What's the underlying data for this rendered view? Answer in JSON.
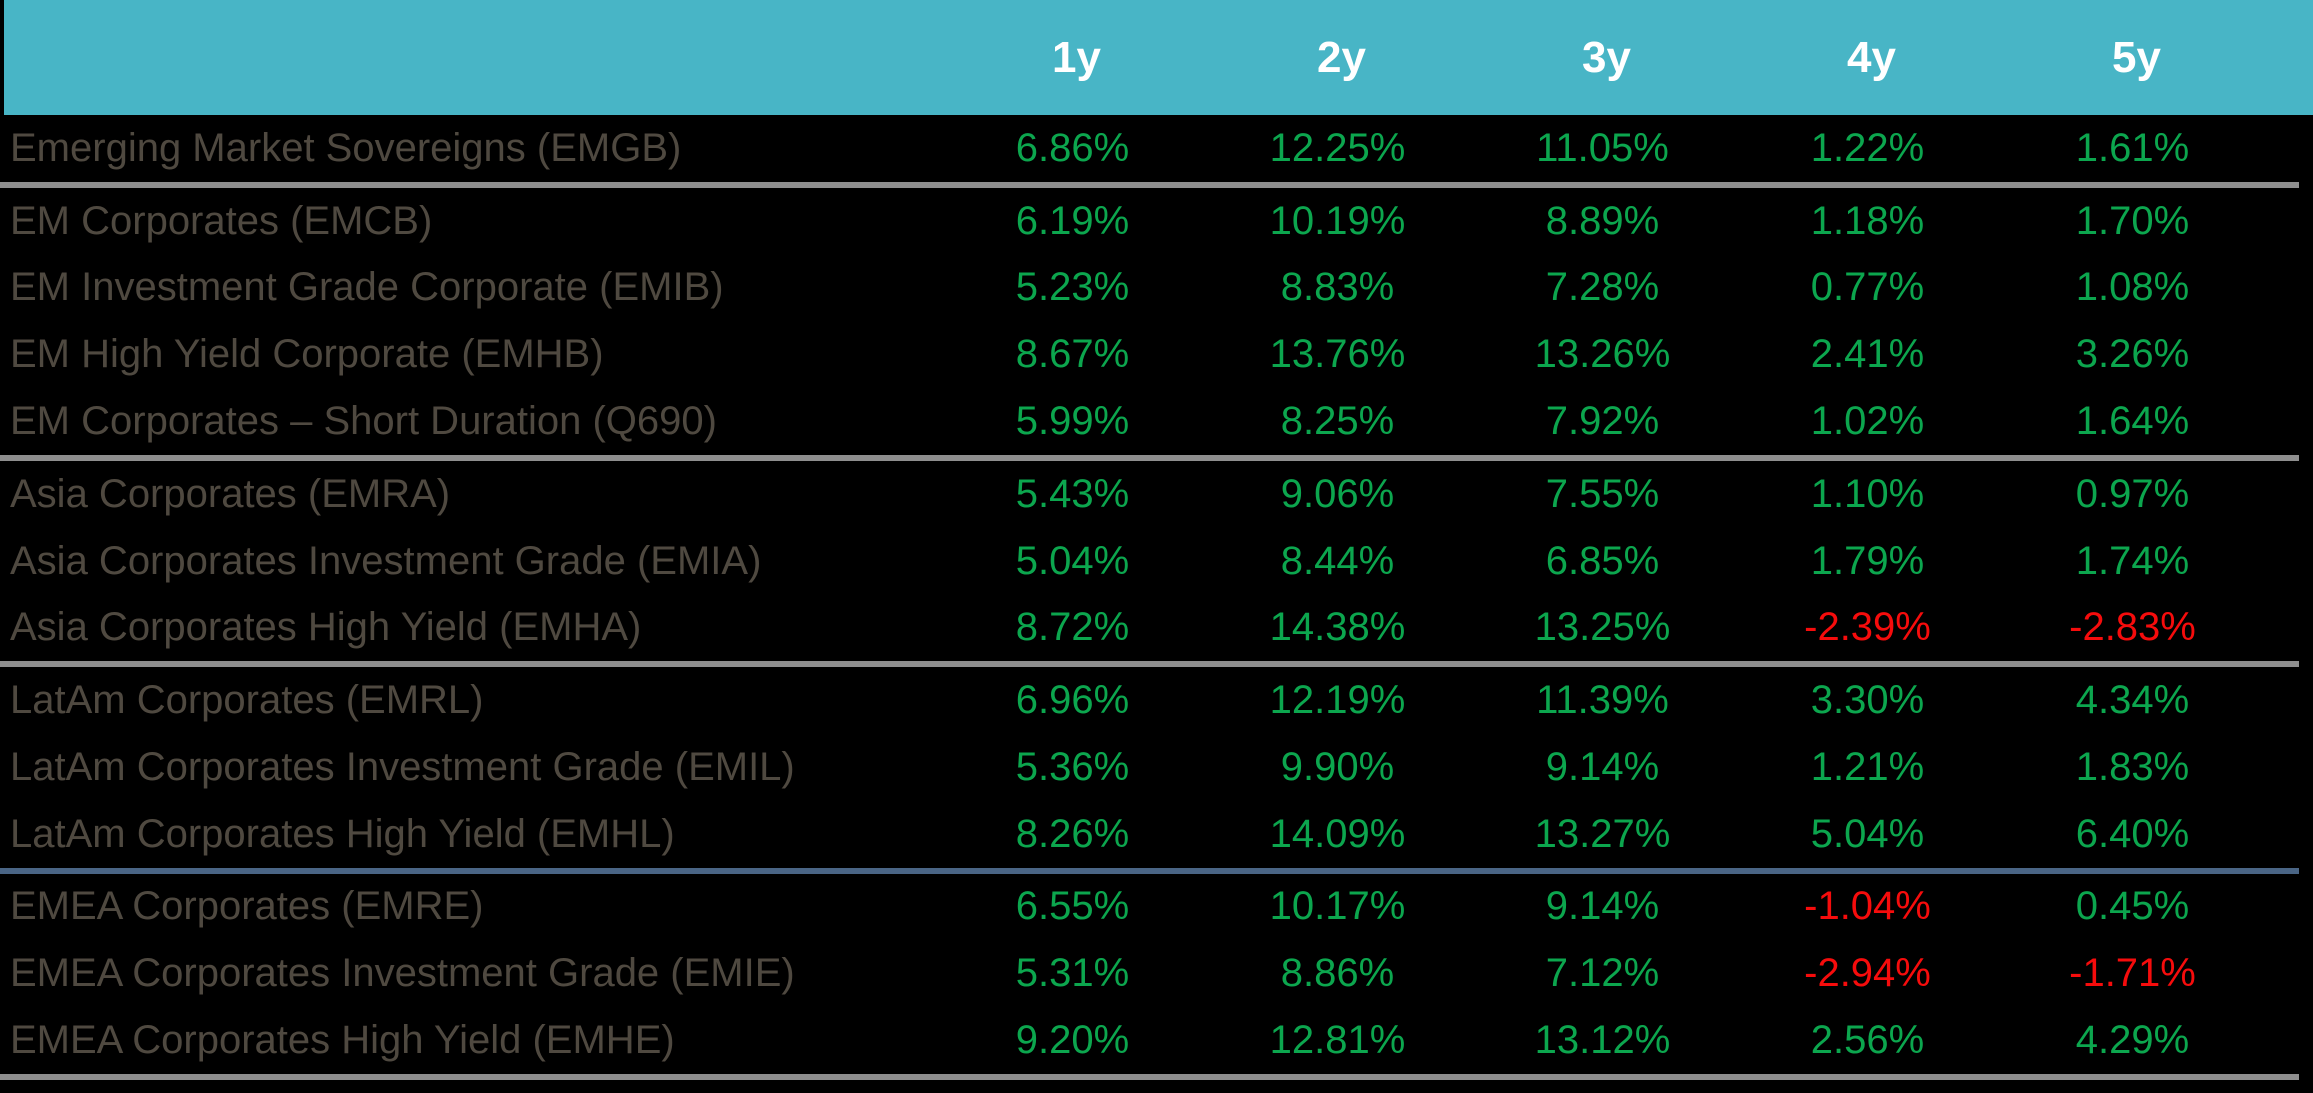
{
  "table": {
    "columns": [
      "1y",
      "2y",
      "3y",
      "4y",
      "5y"
    ],
    "rows": [
      {
        "label": "Emerging Market Sovereigns (EMGB)",
        "values": [
          "6.86%",
          "12.25%",
          "11.05%",
          "1.22%",
          "1.61%"
        ],
        "separator_after": "gray"
      },
      {
        "label": "EM Corporates (EMCB)",
        "values": [
          "6.19%",
          "10.19%",
          "8.89%",
          "1.18%",
          "1.70%"
        ],
        "separator_after": null
      },
      {
        "label": "EM Investment Grade Corporate (EMIB)",
        "values": [
          "5.23%",
          "8.83%",
          "7.28%",
          "0.77%",
          "1.08%"
        ],
        "separator_after": null
      },
      {
        "label": "EM High Yield Corporate (EMHB)",
        "values": [
          "8.67%",
          "13.76%",
          "13.26%",
          "2.41%",
          "3.26%"
        ],
        "separator_after": null
      },
      {
        "label": "EM Corporates – Short Duration (Q690)",
        "values": [
          "5.99%",
          "8.25%",
          "7.92%",
          "1.02%",
          "1.64%"
        ],
        "separator_after": "gray"
      },
      {
        "label": "Asia Corporates (EMRA)",
        "values": [
          "5.43%",
          "9.06%",
          "7.55%",
          "1.10%",
          "0.97%"
        ],
        "separator_after": null
      },
      {
        "label": "Asia Corporates Investment Grade (EMIA)",
        "values": [
          "5.04%",
          "8.44%",
          "6.85%",
          "1.79%",
          "1.74%"
        ],
        "separator_after": null
      },
      {
        "label": "Asia Corporates High Yield (EMHA)",
        "values": [
          "8.72%",
          "14.38%",
          "13.25%",
          "-2.39%",
          "-2.83%"
        ],
        "separator_after": "gray"
      },
      {
        "label": "LatAm Corporates (EMRL)",
        "values": [
          "6.96%",
          "12.19%",
          "11.39%",
          "3.30%",
          "4.34%"
        ],
        "separator_after": null
      },
      {
        "label": "LatAm Corporates Investment Grade (EMIL)",
        "values": [
          "5.36%",
          "9.90%",
          "9.14%",
          "1.21%",
          "1.83%"
        ],
        "separator_after": null
      },
      {
        "label": "LatAm Corporates High Yield (EMHL)",
        "values": [
          "8.26%",
          "14.09%",
          "13.27%",
          "5.04%",
          "6.40%"
        ],
        "separator_after": "blue"
      },
      {
        "label": "EMEA Corporates (EMRE)",
        "values": [
          "6.55%",
          "10.17%",
          "9.14%",
          "-1.04%",
          "0.45%"
        ],
        "separator_after": null
      },
      {
        "label": "EMEA Corporates Investment Grade (EMIE)",
        "values": [
          "5.31%",
          "8.86%",
          "7.12%",
          "-2.94%",
          "-1.71%"
        ],
        "separator_after": null
      },
      {
        "label": "EMEA Corporates High Yield (EMHE)",
        "values": [
          "9.20%",
          "12.81%",
          "13.12%",
          "2.56%",
          "4.29%"
        ],
        "separator_after": "gray"
      }
    ]
  },
  "colors": {
    "background": "#000000",
    "header_bg": "#48B5C6",
    "header_text": "#FFFFFF",
    "label_text": "#4F4940",
    "positive": "#0CA64E",
    "negative": "#F60C0C",
    "separator_gray": "#8E8E8E",
    "separator_blue": "#4A6585"
  },
  "chart_data": {
    "type": "table",
    "title": "",
    "columns": [
      "1y",
      "2y",
      "3y",
      "4y",
      "5y"
    ],
    "value_format": "percent",
    "rows": [
      {
        "label": "Emerging Market Sovereigns (EMGB)",
        "values": [
          6.86,
          12.25,
          11.05,
          1.22,
          1.61
        ]
      },
      {
        "label": "EM Corporates (EMCB)",
        "values": [
          6.19,
          10.19,
          8.89,
          1.18,
          1.7
        ]
      },
      {
        "label": "EM Investment Grade Corporate (EMIB)",
        "values": [
          5.23,
          8.83,
          7.28,
          0.77,
          1.08
        ]
      },
      {
        "label": "EM High Yield Corporate (EMHB)",
        "values": [
          8.67,
          13.76,
          13.26,
          2.41,
          3.26
        ]
      },
      {
        "label": "EM Corporates – Short Duration (Q690)",
        "values": [
          5.99,
          8.25,
          7.92,
          1.02,
          1.64
        ]
      },
      {
        "label": "Asia Corporates (EMRA)",
        "values": [
          5.43,
          9.06,
          7.55,
          1.1,
          0.97
        ]
      },
      {
        "label": "Asia Corporates Investment Grade (EMIA)",
        "values": [
          5.04,
          8.44,
          6.85,
          1.79,
          1.74
        ]
      },
      {
        "label": "Asia Corporates High Yield (EMHA)",
        "values": [
          8.72,
          14.38,
          13.25,
          -2.39,
          -2.83
        ]
      },
      {
        "label": "LatAm Corporates (EMRL)",
        "values": [
          6.96,
          12.19,
          11.39,
          3.3,
          4.34
        ]
      },
      {
        "label": "LatAm Corporates Investment Grade (EMIL)",
        "values": [
          5.36,
          9.9,
          9.14,
          1.21,
          1.83
        ]
      },
      {
        "label": "LatAm Corporates High Yield (EMHL)",
        "values": [
          8.26,
          14.09,
          13.27,
          5.04,
          6.4
        ]
      },
      {
        "label": "EMEA Corporates (EMRE)",
        "values": [
          6.55,
          10.17,
          9.14,
          -1.04,
          0.45
        ]
      },
      {
        "label": "EMEA Corporates Investment Grade (EMIE)",
        "values": [
          5.31,
          8.86,
          7.12,
          -2.94,
          -1.71
        ]
      },
      {
        "label": "EMEA Corporates High Yield (EMHE)",
        "values": [
          9.2,
          12.81,
          13.12,
          2.56,
          4.29
        ]
      }
    ],
    "legend": "values colored green when positive, red when negative",
    "grid": false
  }
}
